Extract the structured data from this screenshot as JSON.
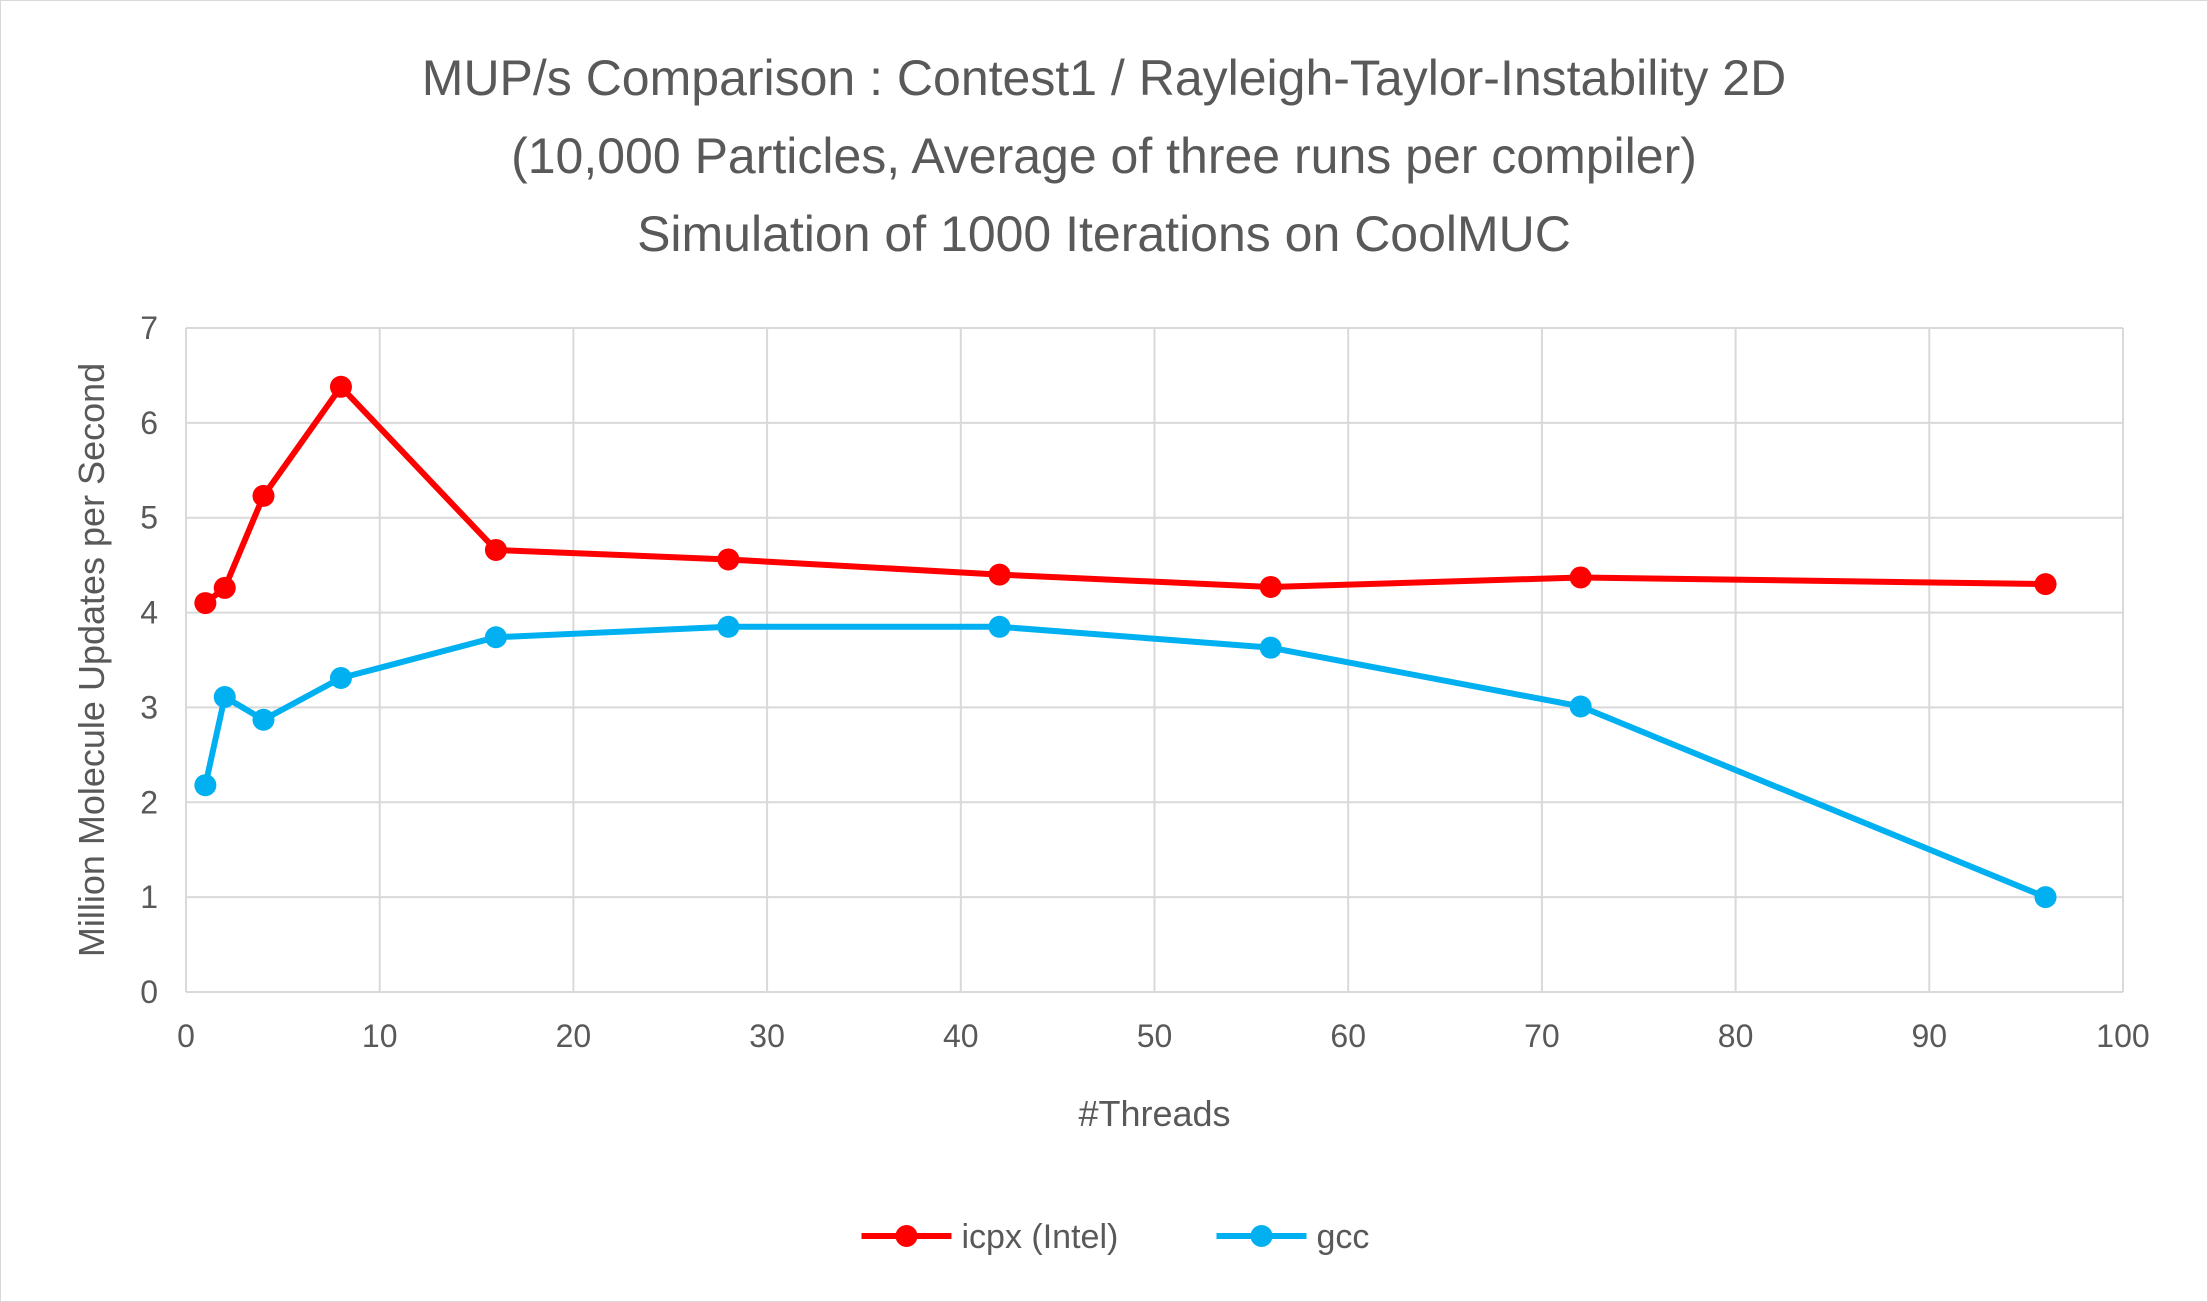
{
  "chart_data": {
    "type": "line",
    "title_lines": [
      "MUP/s Comparison : Contest1 / Rayleigh-Taylor-Instability 2D",
      "(10,000 Particles, Average of three runs per compiler)",
      "Simulation of 1000 Iterations on CoolMUC"
    ],
    "xlabel": "#Threads",
    "ylabel": "Million Molecule Updates per Second",
    "xlim": [
      0,
      100
    ],
    "ylim": [
      0,
      7
    ],
    "xticks": [
      0,
      10,
      20,
      30,
      40,
      50,
      60,
      70,
      80,
      90,
      100
    ],
    "yticks": [
      0,
      1,
      2,
      3,
      4,
      5,
      6,
      7
    ],
    "grid": true,
    "legend_position": "bottom",
    "series": [
      {
        "name": "icpx (Intel)",
        "color": "#ff0000",
        "x": [
          1,
          2,
          4,
          8,
          16,
          28,
          42,
          56,
          72,
          96
        ],
        "y": [
          4.1,
          4.26,
          5.23,
          6.38,
          4.66,
          4.56,
          4.4,
          4.27,
          4.37,
          4.3
        ]
      },
      {
        "name": "gcc",
        "color": "#00b0f0",
        "x": [
          1,
          2,
          4,
          8,
          16,
          28,
          42,
          56,
          72,
          96
        ],
        "y": [
          2.18,
          3.11,
          2.87,
          3.31,
          3.74,
          3.85,
          3.85,
          3.63,
          3.01,
          1.0
        ]
      }
    ]
  }
}
